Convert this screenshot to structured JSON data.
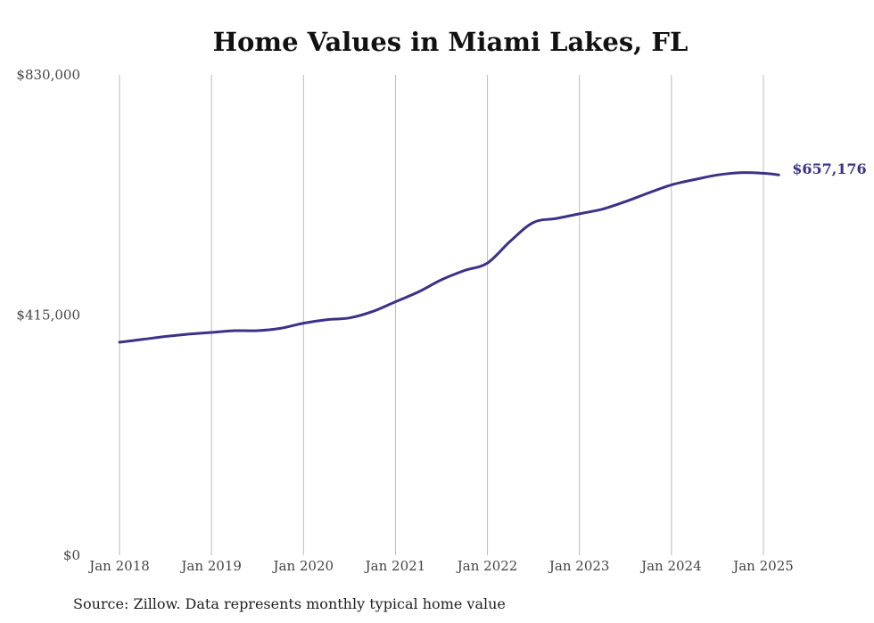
{
  "chart_data": {
    "type": "line",
    "title": "Home Values in Miami Lakes, FL",
    "source": "Source: Zillow. Data represents monthly typical home value",
    "xlabel": "",
    "ylabel": "",
    "x_ticks": [
      "Jan 2018",
      "Jan 2019",
      "Jan 2020",
      "Jan 2021",
      "Jan 2022",
      "Jan 2023",
      "Jan 2024",
      "Jan 2025"
    ],
    "x_range": [
      "2018-01",
      "2025-03"
    ],
    "ylim": [
      0,
      830000
    ],
    "y_ticks": [
      "$0",
      "$415,000",
      "$830,000"
    ],
    "grid": "vertical",
    "legend": "none",
    "end_label": "$657,176",
    "line_color": "#3b3188",
    "grid_color": "#bbbbbb",
    "series": [
      {
        "x": [
          "2018-01",
          "2018-04",
          "2018-07",
          "2018-10",
          "2019-01",
          "2019-04",
          "2019-07",
          "2019-10",
          "2020-01",
          "2020-04",
          "2020-07",
          "2020-10",
          "2021-01",
          "2021-04",
          "2021-07",
          "2021-10",
          "2022-01",
          "2022-04",
          "2022-07",
          "2022-10",
          "2023-01",
          "2023-04",
          "2023-07",
          "2023-10",
          "2024-01",
          "2024-04",
          "2024-07",
          "2024-10",
          "2025-01",
          "2025-03"
        ],
        "y": [
          368000,
          373000,
          378000,
          382000,
          385000,
          388000,
          388000,
          392000,
          401000,
          407000,
          410000,
          421000,
          438000,
          455000,
          476000,
          492000,
          505000,
          543000,
          575000,
          582000,
          590000,
          598000,
          611000,
          626000,
          640000,
          649000,
          657000,
          661000,
          660000,
          657176
        ]
      }
    ]
  }
}
